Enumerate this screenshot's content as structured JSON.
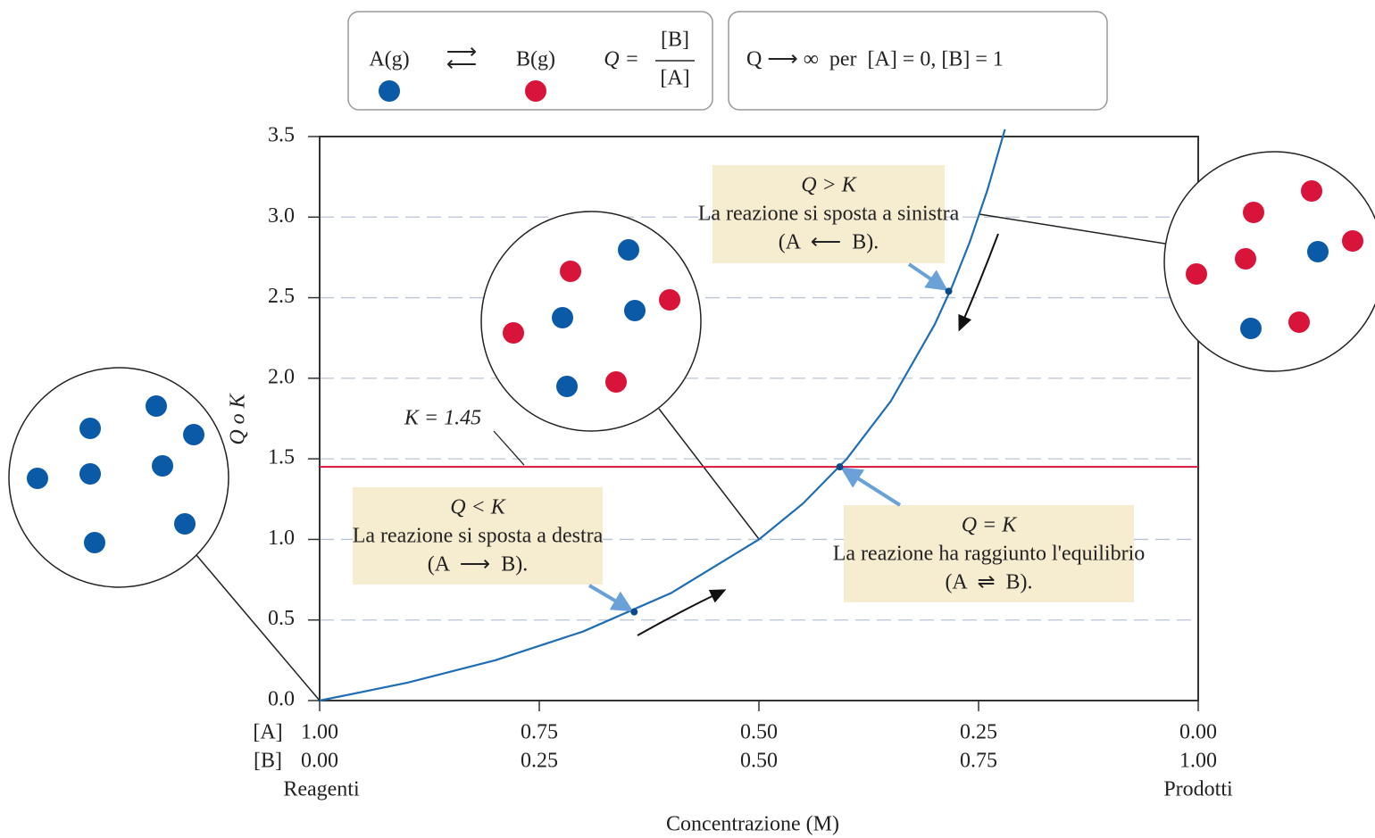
{
  "chart_data": {
    "type": "line",
    "y_label": "Q o K",
    "x_label": "Concentrazione (M)",
    "x_row_labels": [
      "[A]",
      "[B]"
    ],
    "x_end_labels": [
      "Reagenti",
      "Prodotti"
    ],
    "xlim": [
      0,
      1
    ],
    "xticks": [
      {
        "value": 0,
        "label": "0.00"
      },
      {
        "value": 0.25,
        "label": "0.25"
      },
      {
        "value": 0.5,
        "label": "0.50"
      },
      {
        "value": 0.75,
        "label": "0.75"
      },
      {
        "value": 1,
        "label": "1.00"
      }
    ],
    "a_tick_labels": [
      "1.00",
      "0.75",
      "0.50",
      "0.25",
      "0.00"
    ],
    "ylim": [
      0,
      3.5
    ],
    "yticks": [
      {
        "value": 0,
        "label": "0.0"
      },
      0.5,
      {
        "value": 1,
        "label": "1.0"
      },
      1.5,
      {
        "value": 2,
        "label": "2.0"
      },
      2.5,
      {
        "value": 3,
        "label": "3.0"
      },
      3.5
    ],
    "grid": true,
    "x": [
      0,
      0.1,
      0.2,
      0.3,
      0.4,
      0.5,
      0.55,
      0.6,
      0.65,
      0.7,
      0.72,
      0.74,
      0.76,
      0.78
    ],
    "values": [
      0,
      0.111,
      0.25,
      0.429,
      0.667,
      1.0,
      1.222,
      1.5,
      1.857,
      2.333,
      2.571,
      2.846,
      3.167,
      3.545
    ],
    "color": "#1f6db5",
    "k_line": {
      "value": 1.45,
      "label": "K = 1.45",
      "color": "#d9143a"
    },
    "points": {
      "x": [
        0.358,
        0.592,
        0.716
      ],
      "values": [
        0.55,
        1.45,
        2.54
      ]
    },
    "annotations": [
      {
        "title": "Q < K",
        "text": "La reazione si sposta a destra",
        "reaction": "(A  ⟶  B)."
      },
      {
        "title": "Q = K",
        "text": "La reazione ha raggiunto l'equilibrio",
        "reaction": "(A  ⇌  B)."
      },
      {
        "title": "Q > K",
        "text": "La reazione si sposta a sinistra",
        "reaction": "(A  ⟵  B)."
      }
    ],
    "equation": {
      "species_a": "A(g)",
      "species_b": "B(g)",
      "q_label": "Q =",
      "numerator": "[B]",
      "denominator": "[A]"
    },
    "limit_note": "Q ⟶ ∞  per  [A] = 0, [B] = 1"
  }
}
